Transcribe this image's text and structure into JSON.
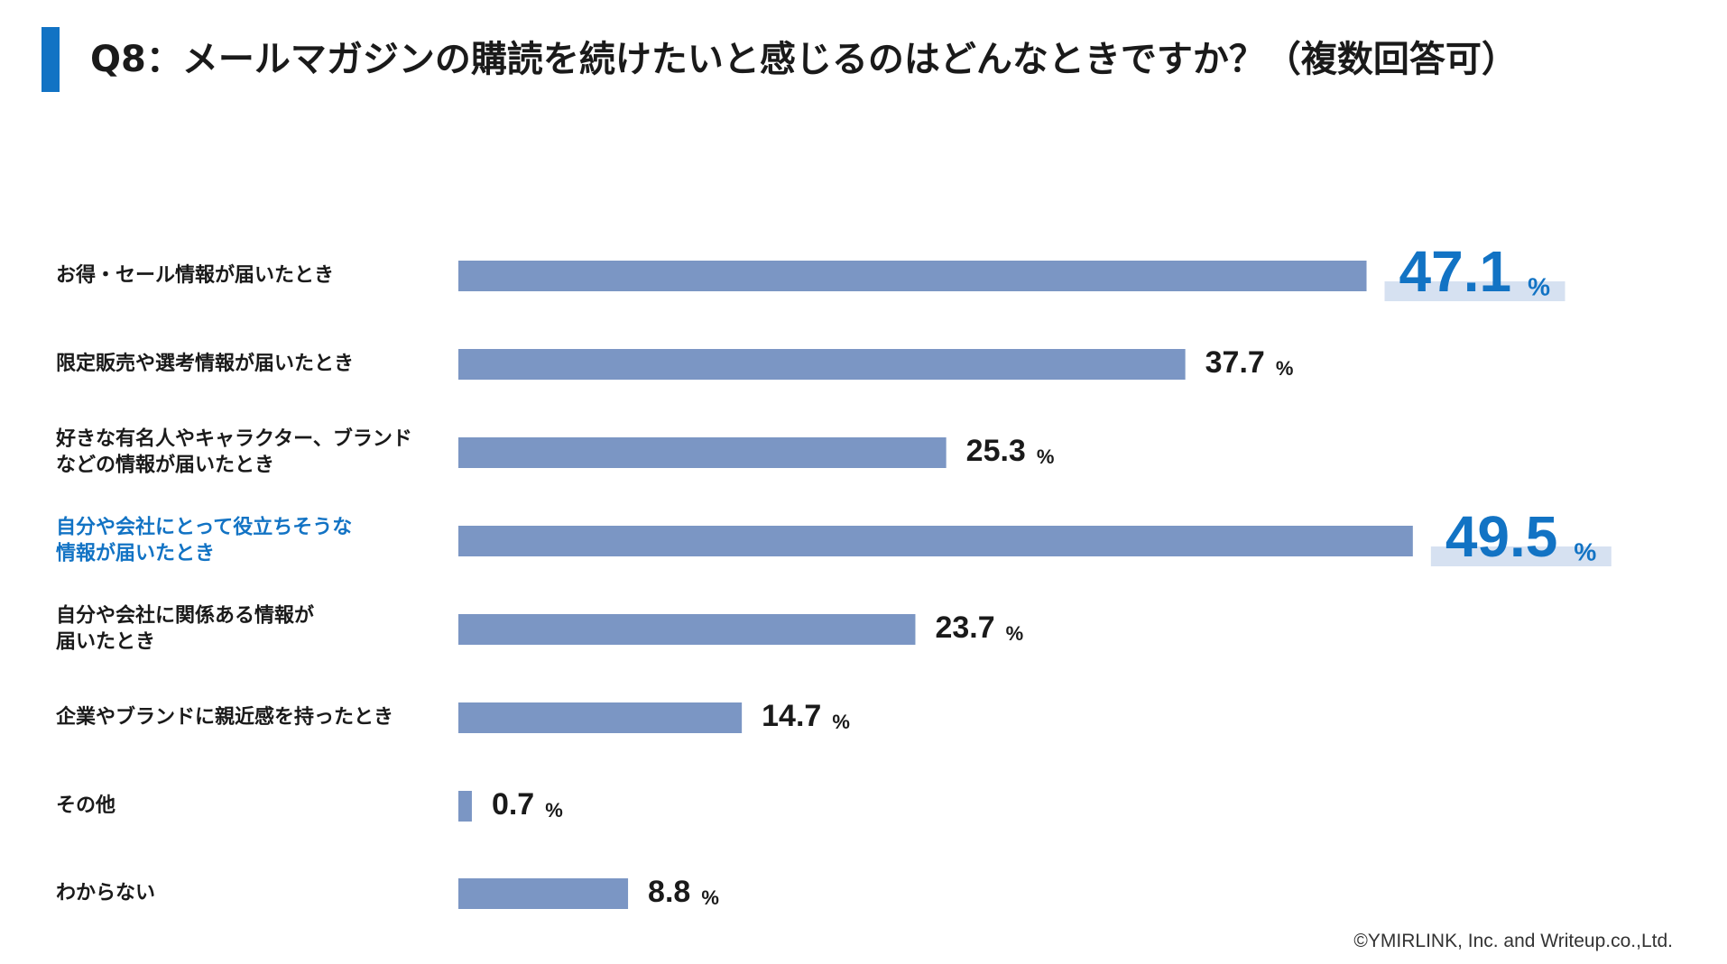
{
  "title": "Q8：メールマガジンの購読を続けたいと感じるのはどんなときですか？（複数回答可）",
  "footer": "©YMIRLINK, Inc. and Writeup.co.,Ltd.",
  "colors": {
    "bar": "#7b96c4",
    "accent": "#1273c4",
    "highlight_band": "#d6e1f1",
    "text": "#1a1a1a"
  },
  "chart_data": {
    "type": "bar",
    "orientation": "horizontal",
    "title": "",
    "xlabel": "",
    "ylabel": "",
    "unit": "%",
    "xlim": [
      0,
      50
    ],
    "grid": false,
    "legend": "none",
    "categories": [
      [
        "お得・セール情報が届いたとき"
      ],
      [
        "限定販売や選考情報が届いたとき"
      ],
      [
        "好きな有名人やキャラクター、ブランド",
        "などの情報が届いたとき"
      ],
      [
        "自分や会社にとって役立ちそうな",
        "情報が届いたとき"
      ],
      [
        "自分や会社に関係ある情報が",
        "届いたとき"
      ],
      [
        "企業やブランドに親近感を持ったとき"
      ],
      [
        "その他"
      ],
      [
        "わからない"
      ]
    ],
    "values": [
      47.1,
      37.7,
      25.3,
      49.5,
      23.7,
      14.7,
      0.7,
      8.8
    ],
    "value_labels": [
      "47.1",
      "37.7",
      "25.3",
      "49.5",
      "23.7",
      "14.7",
      "0.7",
      "8.8"
    ],
    "highlighted": [
      true,
      false,
      false,
      true,
      false,
      false,
      false,
      false
    ],
    "highlighted_label": [
      false,
      false,
      false,
      true,
      false,
      false,
      false,
      false
    ]
  }
}
